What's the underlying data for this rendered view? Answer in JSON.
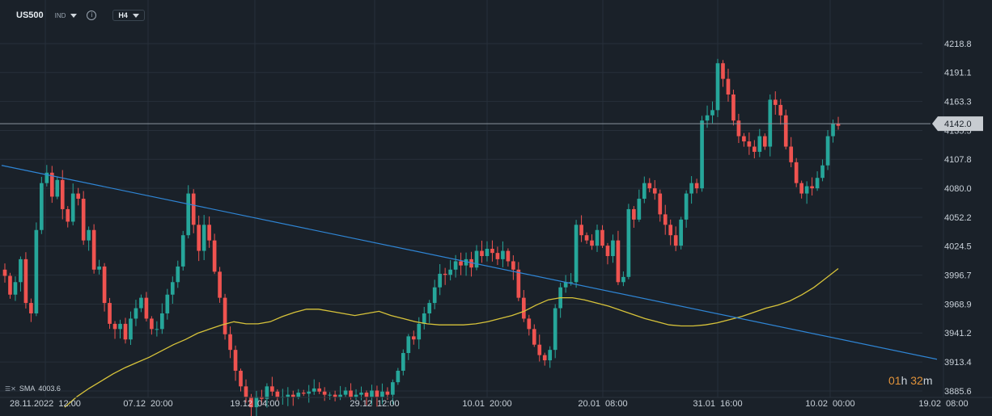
{
  "header": {
    "symbol": "US500",
    "instrument_type": "IND",
    "info_icon": "info-icon",
    "timeframe": "H4"
  },
  "timer": {
    "hours": "01",
    "h_unit": "h",
    "minutes": "32",
    "m_unit": "m"
  },
  "indicator": {
    "label": "SMA",
    "value": "4003.6"
  },
  "colors": {
    "background": "#1a2129",
    "up": "#26a69a",
    "down": "#ef5350",
    "sma": "#d7c33a",
    "trendline": "#2f86d6",
    "price_line": "#8a949e",
    "price_badge_bg": "#c7ccd1"
  },
  "chart_data": {
    "type": "candlestick",
    "current_price": 4142.0,
    "y_ticks": [
      "4218.8",
      "4191.1",
      "4163.3",
      "4135.5",
      "4107.8",
      "4080.0",
      "4052.2",
      "4024.5",
      "3996.7",
      "3968.9",
      "3941.2",
      "3913.4",
      "3885.6"
    ],
    "x_ticks": [
      "28.11.2022  12:00",
      "07.12  20:00",
      "19.12  04:00",
      "29.12  12:00",
      "10.01  20:00",
      "20.01  08:00",
      "31.01  16:00",
      "10.02  00:00",
      "19.02  08:00"
    ],
    "ylim": [
      3885.6,
      4218.8
    ],
    "close_series": [
      3996,
      3978,
      3990,
      4012,
      3970,
      3960,
      4040,
      4085,
      4095,
      4072,
      4088,
      4060,
      4048,
      4075,
      4070,
      4030,
      4040,
      4002,
      4005,
      3970,
      3950,
      3945,
      3950,
      3935,
      3955,
      3965,
      3975,
      3955,
      3945,
      3945,
      3960,
      3978,
      3990,
      4005,
      4035,
      4075,
      4045,
      4020,
      4045,
      4030,
      4000,
      3975,
      3940,
      3925,
      3905,
      3890,
      3880,
      3870,
      3880,
      3878,
      3890,
      3885,
      3880,
      3880,
      3882,
      3880,
      3884,
      3883,
      3885,
      3888,
      3885,
      3882,
      3882,
      3880,
      3882,
      3886,
      3880,
      3882,
      3884,
      3880,
      3886,
      3880,
      3885,
      3882,
      3894,
      3905,
      3922,
      3938,
      3935,
      3950,
      3960,
      3970,
      3985,
      3998,
      3997,
      4002,
      4010,
      4006,
      4012,
      4004,
      4020,
      4015,
      4022,
      4018,
      4012,
      4020,
      4010,
      4002,
      3975,
      3955,
      3945,
      3930,
      3920,
      3915,
      3925,
      3965,
      3985,
      3990,
      3990,
      4045,
      4035,
      4030,
      4025,
      4040,
      4025,
      4015,
      4030,
      3990,
      3995,
      4060,
      4050,
      4070,
      4085,
      4080,
      4075,
      4055,
      4045,
      4035,
      4025,
      4050,
      4075,
      4085,
      4080,
      4145,
      4150,
      4155,
      4200,
      4185,
      4170,
      4145,
      4130,
      4125,
      4120,
      4115,
      4130,
      4120,
      4165,
      4160,
      4150,
      4120,
      4105,
      4085,
      4075,
      4082,
      4080,
      4090,
      4102,
      4130,
      4142,
      4140
    ],
    "sma_series": [
      3870,
      3880,
      3888,
      3895,
      3902,
      3908,
      3913,
      3918,
      3924,
      3930,
      3935,
      3941,
      3945,
      3949,
      3952,
      3950,
      3950,
      3952,
      3957,
      3961,
      3964,
      3964,
      3962,
      3960,
      3958,
      3960,
      3962,
      3958,
      3955,
      3952,
      3950,
      3949,
      3949,
      3949,
      3950,
      3952,
      3955,
      3958,
      3962,
      3968,
      3973,
      3975,
      3975,
      3973,
      3970,
      3967,
      3963,
      3959,
      3955,
      3952,
      3949,
      3948,
      3948,
      3949,
      3951,
      3954,
      3957,
      3961,
      3965,
      3968,
      3972,
      3978,
      3985,
      3994,
      4003
    ],
    "trendline": {
      "start": 4102,
      "end": 3916
    }
  }
}
